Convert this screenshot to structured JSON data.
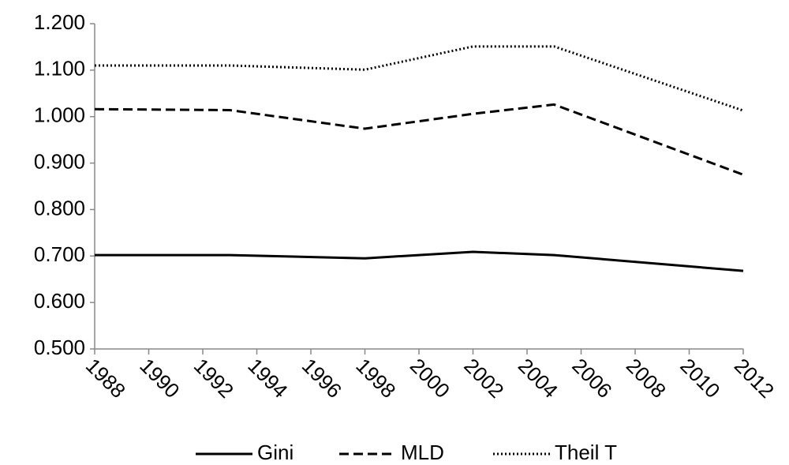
{
  "chart_data": {
    "type": "line",
    "x": [
      1988,
      1993,
      1998,
      2002,
      2005,
      2012
    ],
    "series": [
      {
        "name": "Gini",
        "color": "#000000",
        "line_style": "solid",
        "values": [
          0.702,
          0.702,
          0.695,
          0.709,
          0.702,
          0.668
        ]
      },
      {
        "name": "MLD",
        "color": "#000000",
        "line_style": "dashed",
        "values": [
          1.016,
          1.014,
          0.974,
          1.006,
          1.026,
          0.875
        ]
      },
      {
        "name": "Theil T",
        "color": "#000000",
        "line_style": "dotted",
        "values": [
          1.11,
          1.11,
          1.101,
          1.151,
          1.151,
          1.013
        ]
      }
    ],
    "xlim": [
      1988,
      2012
    ],
    "xticks": [
      1988,
      1990,
      1992,
      1994,
      1996,
      1998,
      2000,
      2002,
      2004,
      2006,
      2008,
      2010,
      2012
    ],
    "ylim": [
      0.5,
      1.2
    ],
    "yticks": [
      {
        "value": 0.5,
        "label": "0.500"
      },
      {
        "value": 0.6,
        "label": "0.600"
      },
      {
        "value": 0.7,
        "label": "0.700"
      },
      {
        "value": 0.8,
        "label": "0.800"
      },
      {
        "value": 0.9,
        "label": "0.900"
      },
      {
        "value": 1.0,
        "label": "1.000"
      },
      {
        "value": 1.1,
        "label": "1.100"
      },
      {
        "value": 1.2,
        "label": "1.200"
      }
    ],
    "grid": false,
    "legend": "bottom"
  }
}
